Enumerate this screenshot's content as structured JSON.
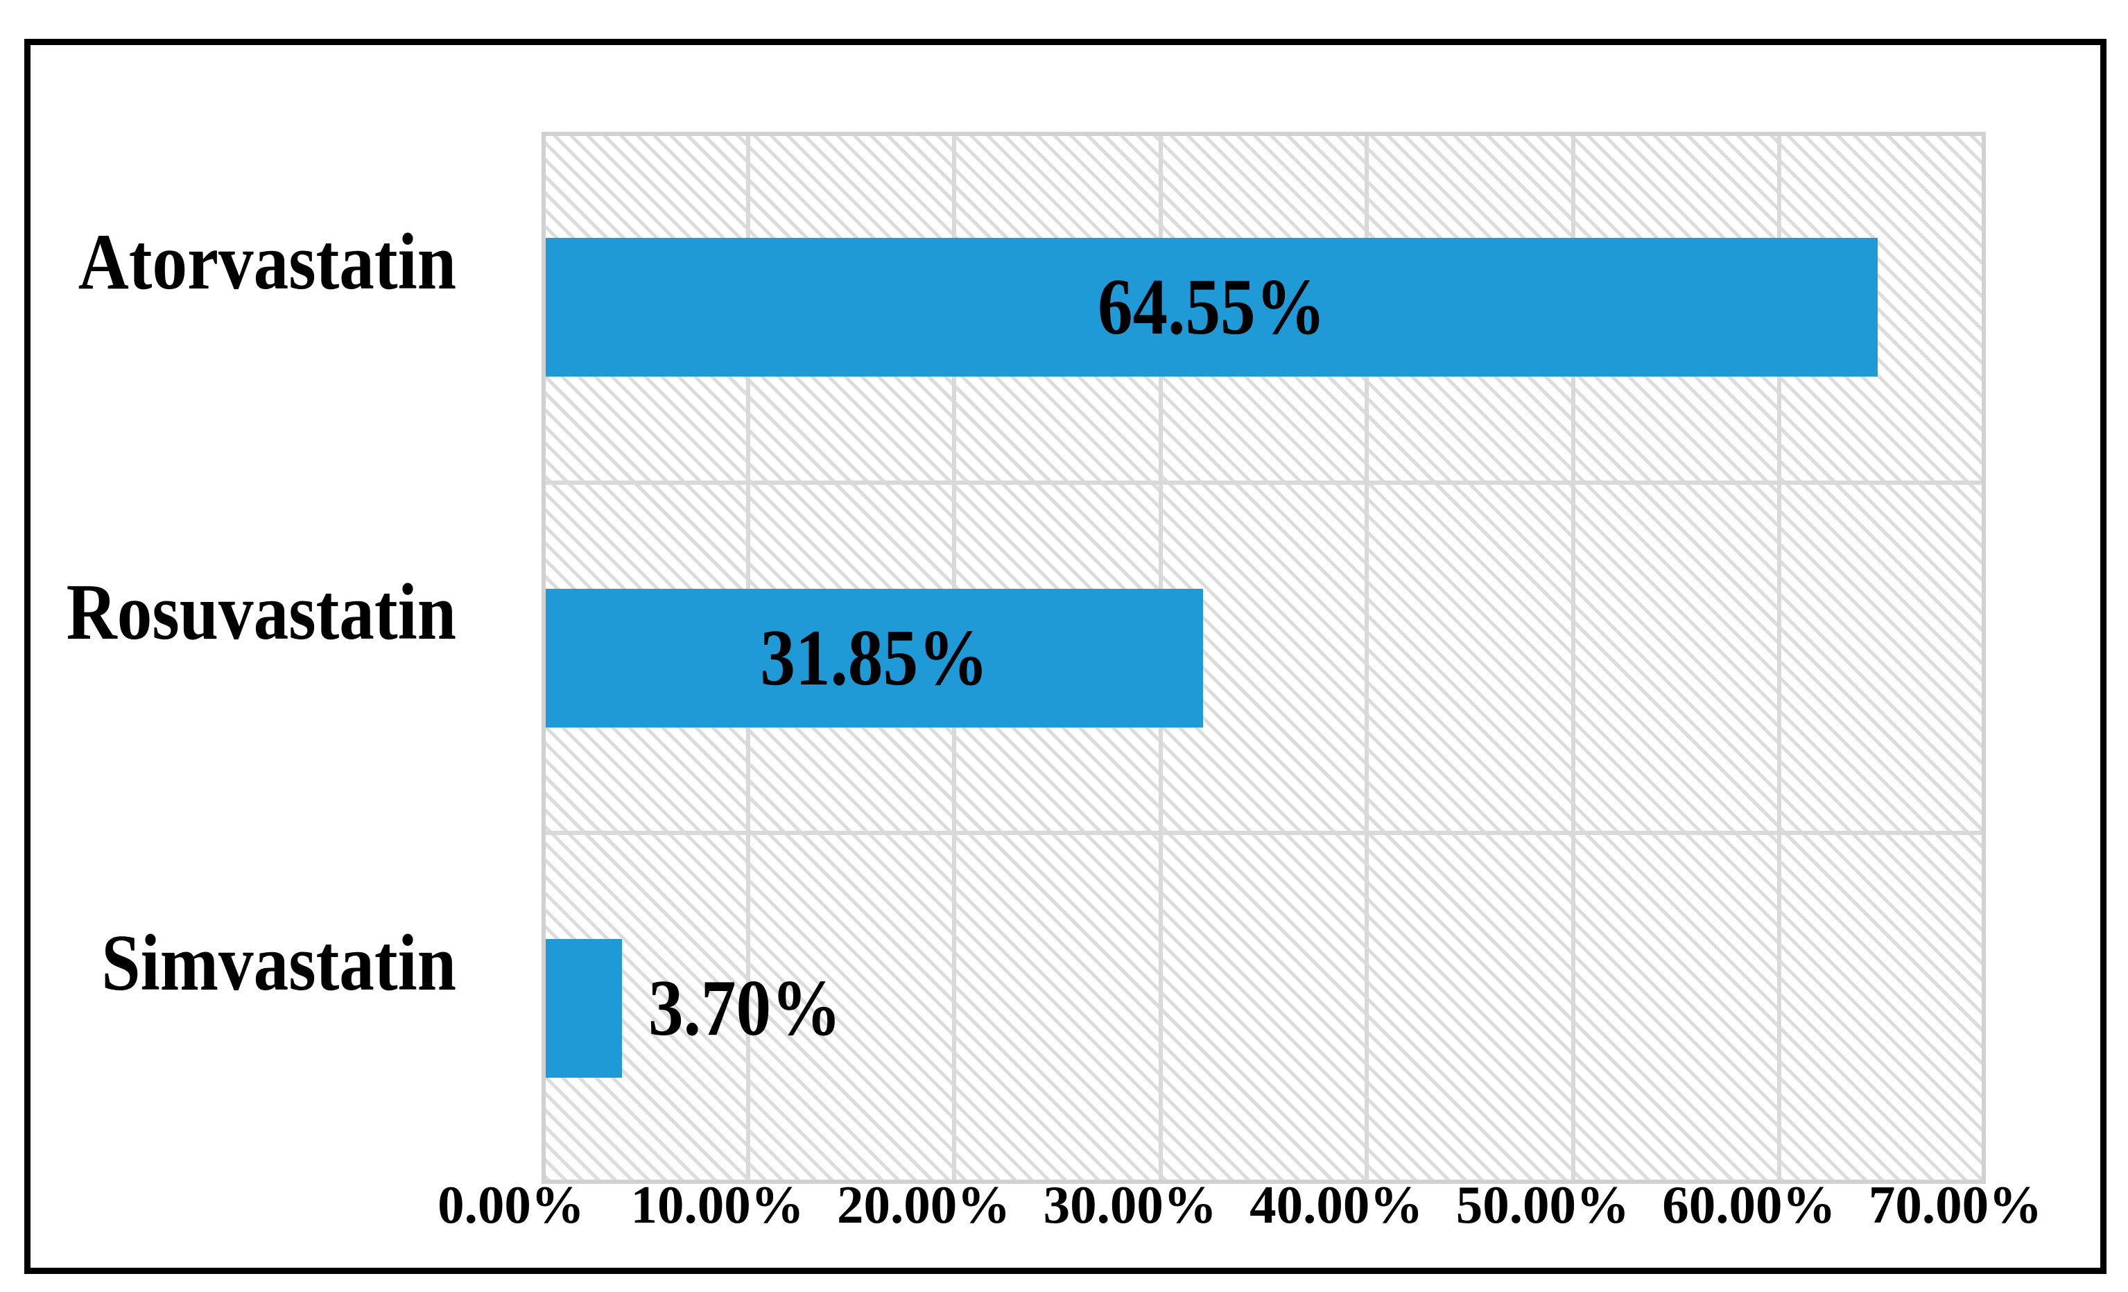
{
  "figure": {
    "background_color": "#FFFFFF",
    "border_color": "#000000"
  },
  "chart_data": {
    "type": "bar",
    "orientation": "horizontal",
    "title": "",
    "xlabel": "",
    "ylabel": "",
    "categories": [
      "Atorvastatin",
      "Rosuvastatin",
      "Simvastatin"
    ],
    "values": [
      64.55,
      31.85,
      3.7
    ],
    "value_labels": [
      "64.55%",
      "31.85%",
      "3.70%"
    ],
    "xlim": [
      0,
      70
    ],
    "x_tick_step": 10,
    "x_tick_labels": [
      "0.00%",
      "10.00%",
      "20.00%",
      "30.00%",
      "40.00%",
      "50.00%",
      "60.00%",
      "70.00%"
    ],
    "grid": true,
    "legend": false,
    "bar_color": "#209AD6",
    "gridline_color": "#D9D9D9",
    "plot_hatch_color": "#DCDCDC",
    "label_color": "#000000"
  }
}
